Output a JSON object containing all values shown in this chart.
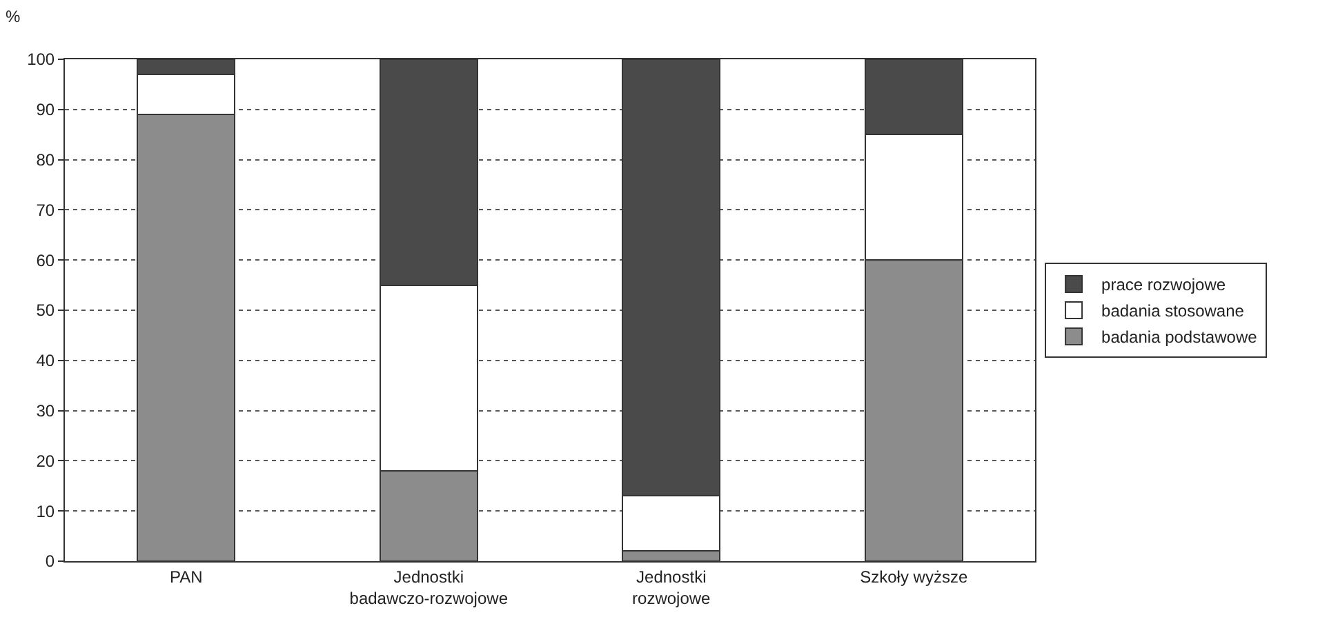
{
  "chart_data": {
    "type": "bar",
    "stacked": true,
    "ylabel": "%",
    "categories": [
      "PAN",
      "Jednostki\nbadawczo-rozwojowe",
      "Jednostki\nrozwojowe",
      "Szkoły wyższe"
    ],
    "series": [
      {
        "name": "badania podstawowe",
        "color": "#8c8c8c",
        "values": [
          89,
          18,
          2,
          60
        ]
      },
      {
        "name": "badania stosowane",
        "color": "#ffffff",
        "values": [
          8,
          37,
          11,
          25
        ]
      },
      {
        "name": "prace rozwojowe",
        "color": "#4a4a4a",
        "values": [
          3,
          45,
          87,
          15
        ]
      }
    ],
    "ylim": [
      0,
      100
    ],
    "yticks": [
      0,
      10,
      20,
      30,
      40,
      50,
      60,
      70,
      80,
      90,
      100
    ],
    "grid": "y",
    "legend": "right"
  }
}
